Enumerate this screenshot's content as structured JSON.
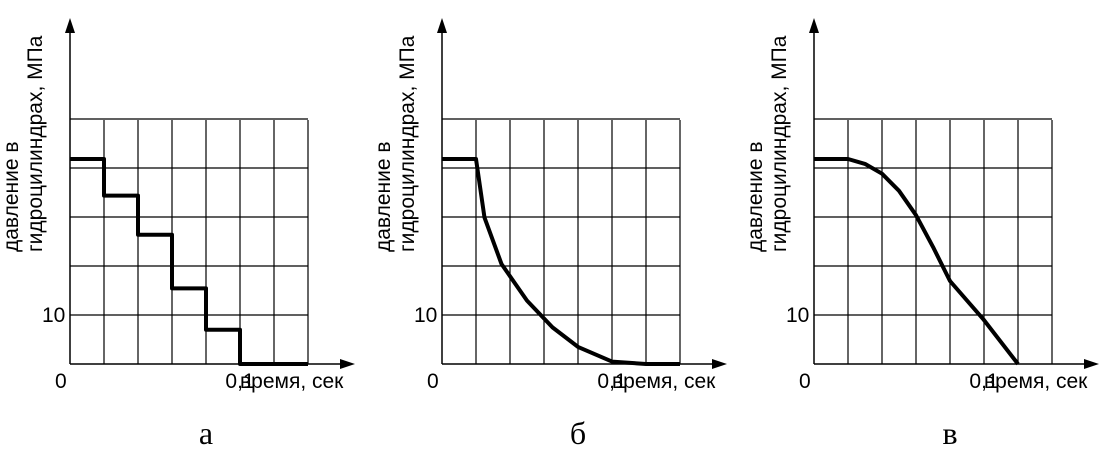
{
  "chart_data": [
    {
      "type": "line",
      "panel_label": "а",
      "ylabel_lines": [
        "давление в",
        "гидроцилиндрах, МПа"
      ],
      "xlabel": "время, сек",
      "origin_label": "0",
      "x_tick_labels": [
        {
          "x": 0.1,
          "label": "0,1"
        }
      ],
      "y_tick_labels": [
        {
          "y": 10,
          "label": "10"
        }
      ],
      "xlim": [
        0,
        0.2
      ],
      "ylim": [
        0,
        50
      ],
      "grid": true,
      "series": [
        {
          "x": [
            0,
            0.02,
            0.02,
            0.04,
            0.04,
            0.06,
            0.06,
            0.08,
            0.08,
            0.1,
            0.1,
            0.14
          ],
          "y": [
            42,
            42,
            34.5,
            34.5,
            26.5,
            26.5,
            15.5,
            15.5,
            7,
            7,
            0,
            0
          ]
        }
      ]
    },
    {
      "type": "line",
      "panel_label": "б",
      "ylabel_lines": [
        "давление в",
        "гидроцилиндрах, МПа"
      ],
      "xlabel": "время, сек",
      "origin_label": "0",
      "x_tick_labels": [
        {
          "x": 0.1,
          "label": "0,1"
        }
      ],
      "y_tick_labels": [
        {
          "y": 10,
          "label": "10"
        }
      ],
      "xlim": [
        0,
        0.2
      ],
      "ylim": [
        0,
        50
      ],
      "grid": true,
      "series": [
        {
          "x": [
            0,
            0.02,
            0.025,
            0.035,
            0.05,
            0.065,
            0.08,
            0.1,
            0.12,
            0.14
          ],
          "y": [
            42,
            42,
            30,
            20.5,
            13,
            7.5,
            3.5,
            0.5,
            0,
            0
          ]
        }
      ]
    },
    {
      "type": "line",
      "panel_label": "в",
      "ylabel_lines": [
        "давление в",
        "гидроцилиндрах, МПа"
      ],
      "xlabel": "время, сек",
      "origin_label": "0",
      "x_tick_labels": [
        {
          "x": 0.1,
          "label": "0,1"
        }
      ],
      "y_tick_labels": [
        {
          "y": 10,
          "label": "10"
        }
      ],
      "xlim": [
        0,
        0.2
      ],
      "ylim": [
        0,
        50
      ],
      "grid": true,
      "series": [
        {
          "x": [
            0,
            0.02,
            0.03,
            0.04,
            0.05,
            0.06,
            0.07,
            0.08,
            0.1,
            0.12
          ],
          "y": [
            42,
            42,
            41,
            39,
            35.5,
            30.5,
            24,
            17,
            9,
            0
          ]
        }
      ]
    }
  ]
}
